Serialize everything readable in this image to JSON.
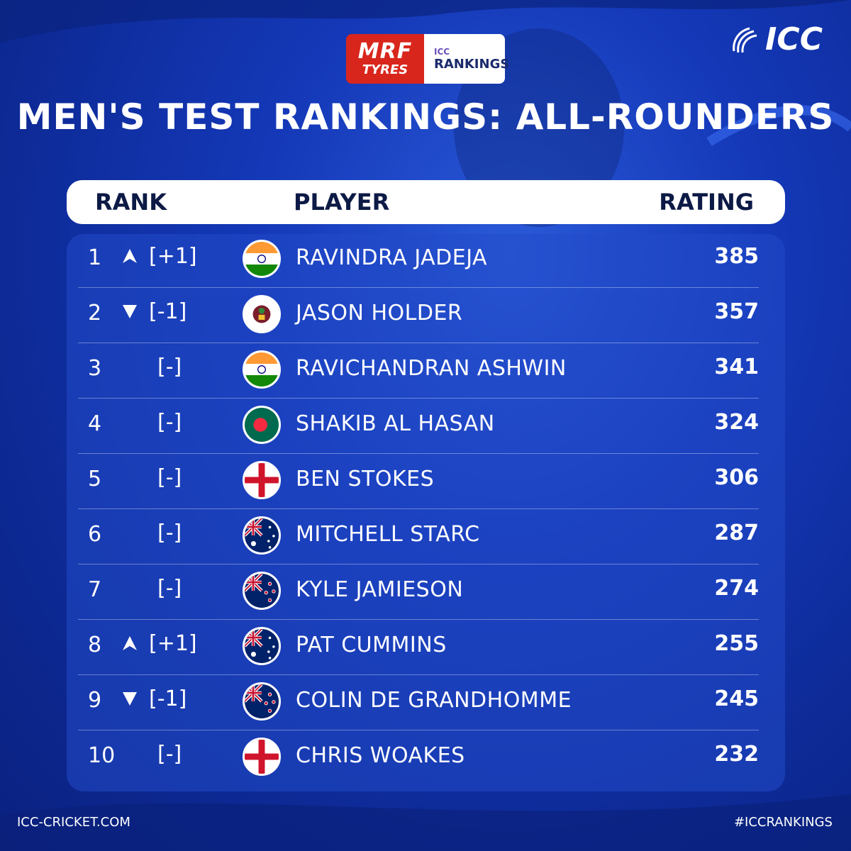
{
  "sponsor": {
    "brand_line1": "MRF",
    "brand_line2": "TYRES",
    "rankings_line1": "ICC",
    "rankings_line2": "RANKINGS"
  },
  "icc_logo": {
    "text": "ICC",
    "icon": "icc-swoosh-icon"
  },
  "title": "MEN'S TEST RANKINGS: ALL-ROUNDERS",
  "table": {
    "headers": {
      "rank": "RANK",
      "player": "PLAYER",
      "rating": "RATING"
    },
    "rows": [
      {
        "rank": "1",
        "move": "up",
        "change": "[+1]",
        "flag": "india-flag-icon",
        "player": "RAVINDRA JADEJA",
        "rating": "385"
      },
      {
        "rank": "2",
        "move": "down",
        "change": "[-1]",
        "flag": "west-indies-flag-icon",
        "player": "JASON HOLDER",
        "rating": "357"
      },
      {
        "rank": "3",
        "move": "none",
        "change": "[-]",
        "flag": "india-flag-icon",
        "player": "RAVICHANDRAN ASHWIN",
        "rating": "341"
      },
      {
        "rank": "4",
        "move": "none",
        "change": "[-]",
        "flag": "bangladesh-flag-icon",
        "player": "SHAKIB AL HASAN",
        "rating": "324"
      },
      {
        "rank": "5",
        "move": "none",
        "change": "[-]",
        "flag": "england-flag-icon",
        "player": "BEN STOKES",
        "rating": "306"
      },
      {
        "rank": "6",
        "move": "none",
        "change": "[-]",
        "flag": "australia-flag-icon",
        "player": "MITCHELL STARC",
        "rating": "287"
      },
      {
        "rank": "7",
        "move": "none",
        "change": "[-]",
        "flag": "new-zealand-flag-icon",
        "player": "KYLE JAMIESON",
        "rating": "274"
      },
      {
        "rank": "8",
        "move": "up",
        "change": "[+1]",
        "flag": "australia-flag-icon",
        "player": "PAT CUMMINS",
        "rating": "255"
      },
      {
        "rank": "9",
        "move": "down",
        "change": "[-1]",
        "flag": "new-zealand-flag-icon",
        "player": "COLIN DE GRANDHOMME",
        "rating": "245"
      },
      {
        "rank": "10",
        "move": "none",
        "change": "[-]",
        "flag": "england-flag-icon",
        "player": "CHRIS WOAKES",
        "rating": "232"
      }
    ]
  },
  "footer": {
    "website": "ICC-CRICKET.COM",
    "hashtag": "#ICCRANKINGS"
  },
  "colors": {
    "background": "#1438b8",
    "header_bg": "#ffffff",
    "header_text": "#0c1a45",
    "sponsor_red": "#d8261c"
  }
}
